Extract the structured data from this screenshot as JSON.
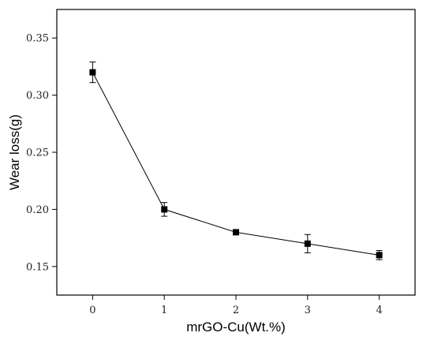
{
  "chart_data": {
    "type": "line",
    "title": "",
    "xlabel": "mrGO-Cu(Wt.%)",
    "ylabel": "Wear loss(g)",
    "xlim": [
      -0.5,
      4.5
    ],
    "ylim": [
      0.125,
      0.375
    ],
    "xticks": [
      0,
      1,
      2,
      3,
      4
    ],
    "xtick_labels": [
      "0",
      "1",
      "2",
      "3",
      "4"
    ],
    "yticks": [
      0.15,
      0.2,
      0.25,
      0.3,
      0.35
    ],
    "ytick_labels": [
      "0.15",
      "0.20",
      "0.25",
      "0.30",
      "0.35"
    ],
    "grid": false,
    "legend": "none",
    "marker": "square",
    "series": [
      {
        "x": [
          0,
          1,
          2,
          3,
          4
        ],
        "y": [
          0.32,
          0.2,
          0.18,
          0.17,
          0.16
        ],
        "error": [
          0.009,
          0.006,
          0.002,
          0.008,
          0.004
        ]
      }
    ],
    "colors": {
      "line": "#000000",
      "marker": "#000000",
      "axis": "#000000"
    }
  }
}
